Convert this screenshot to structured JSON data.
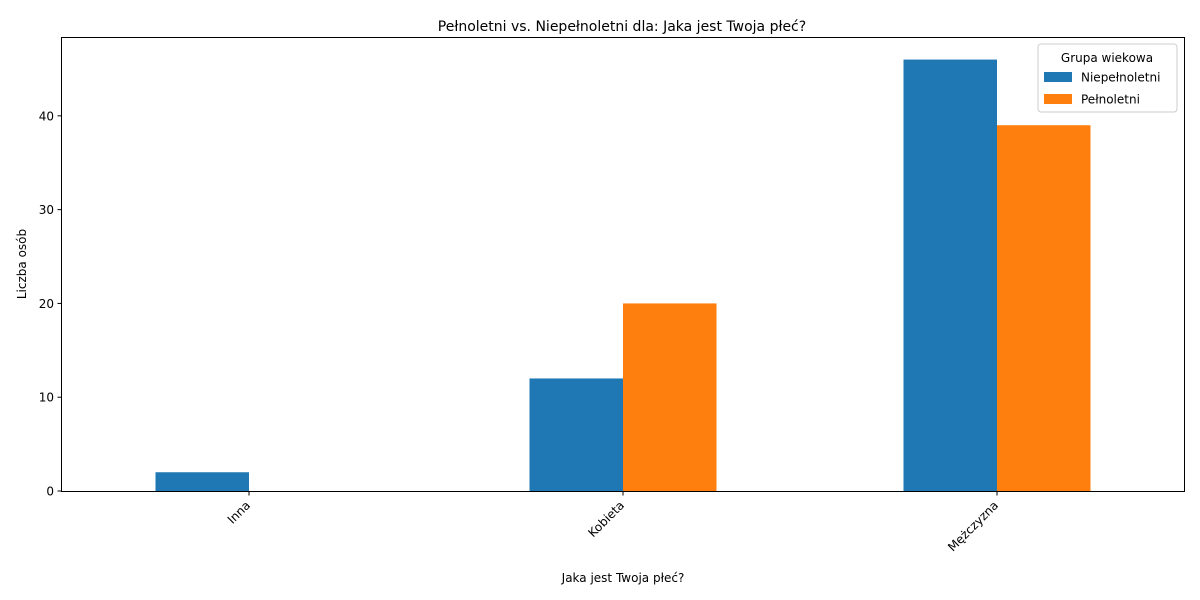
{
  "chart_data": {
    "type": "bar",
    "title": "Pełnoletni vs. Niepełnoletni dla: Jaka jest Twoja płeć?",
    "xlabel": "Jaka jest Twoja płeć?",
    "ylabel": "Liczba osób",
    "categories": [
      "Inna",
      "Kobieta",
      "Mężczyzna"
    ],
    "series": [
      {
        "name": "Niepełnoletni",
        "values": [
          2,
          12,
          46
        ],
        "color": "#1f77b4"
      },
      {
        "name": "Pełnoletni",
        "values": [
          0,
          20,
          39
        ],
        "color": "#ff7f0e"
      }
    ],
    "ylim": [
      0,
      48.3
    ],
    "yticks": [
      0,
      10,
      20,
      30,
      40
    ],
    "grid": false,
    "legend": {
      "title": "Grupa wiekowa",
      "placement": "top-right"
    }
  }
}
